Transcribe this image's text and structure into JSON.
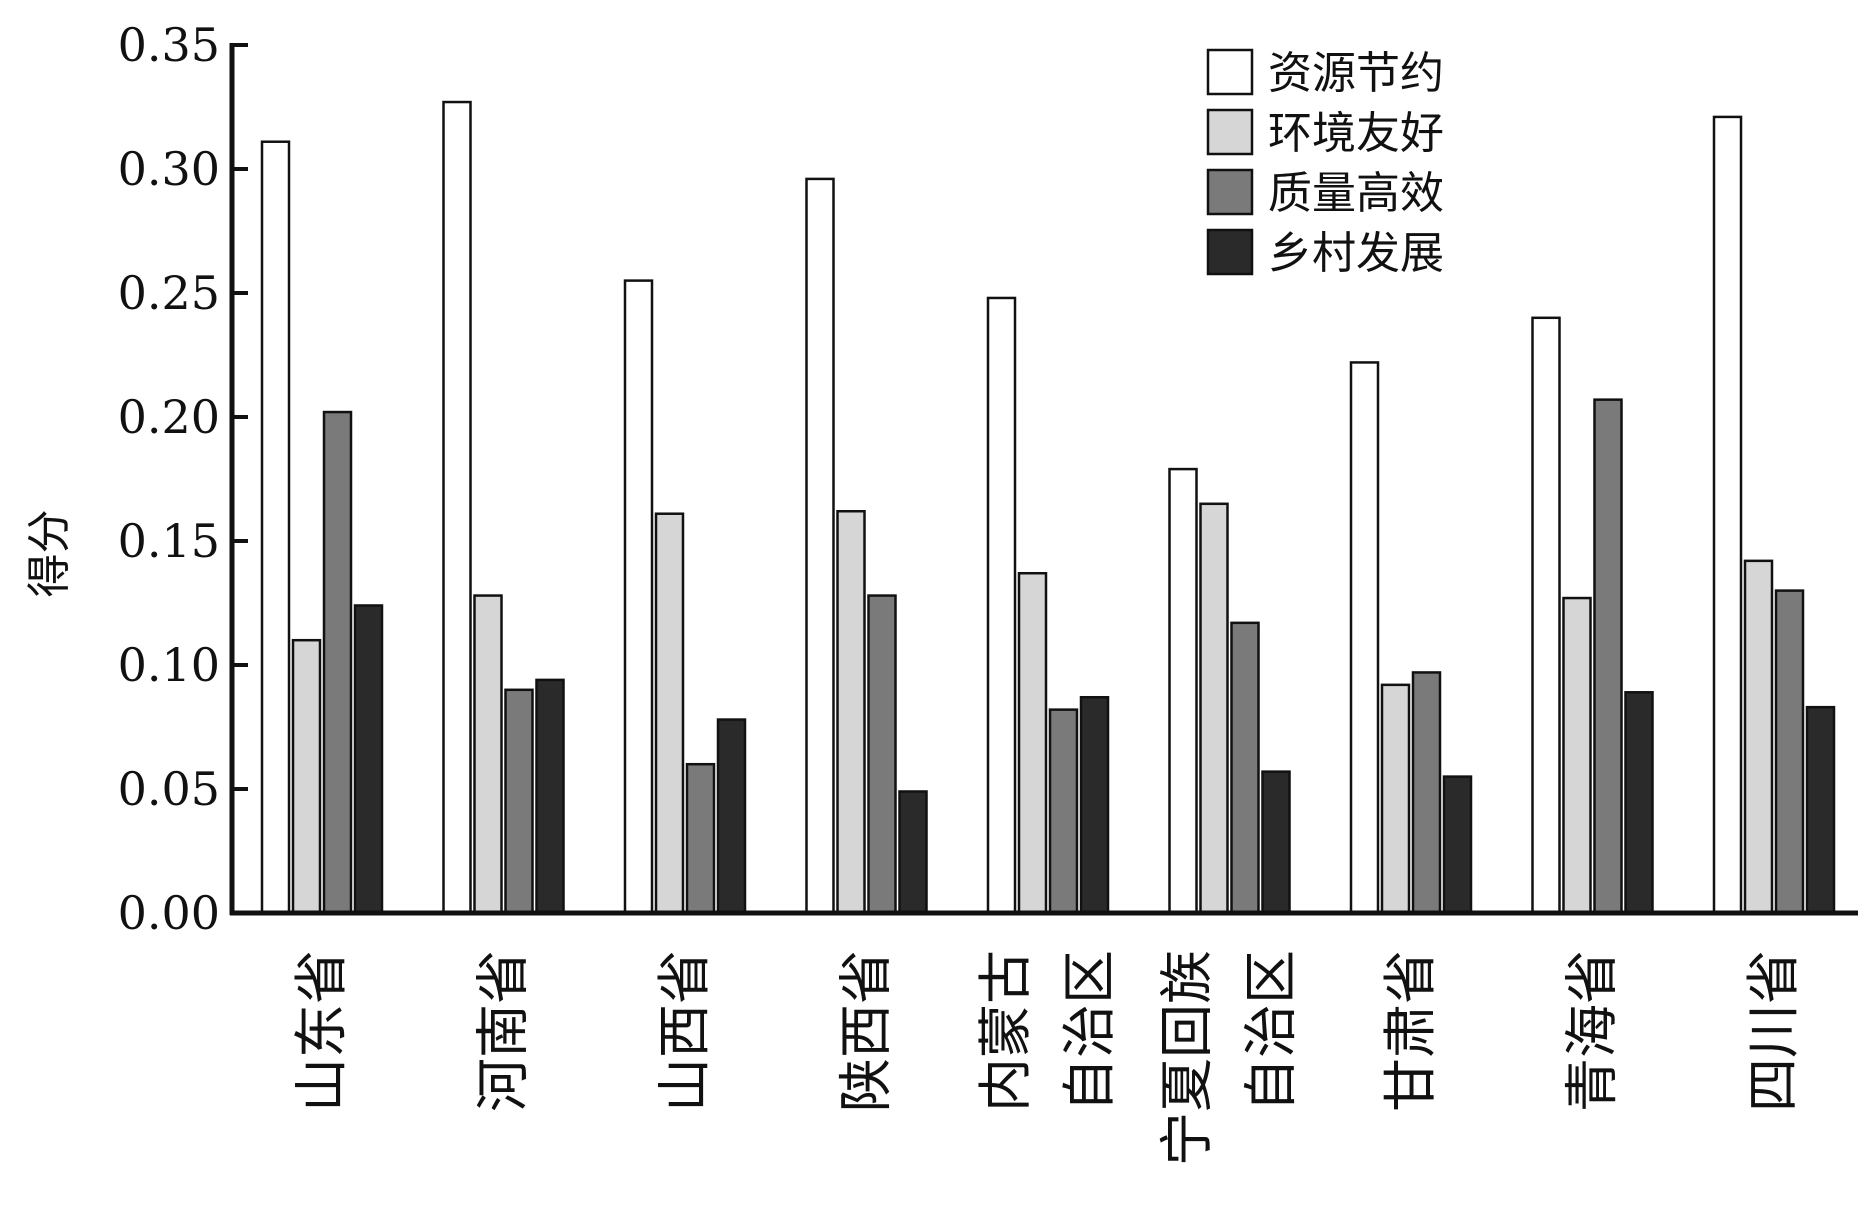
{
  "chart_data": {
    "type": "bar",
    "title": "",
    "xlabel": "",
    "ylabel": "得分",
    "ylim": [
      0,
      0.35
    ],
    "yticks": [
      "0.00",
      "0.05",
      "0.10",
      "0.15",
      "0.20",
      "0.25",
      "0.30",
      "0.35"
    ],
    "grid": false,
    "legend_position": "top-right",
    "categories": [
      [
        "山东省"
      ],
      [
        "河南省"
      ],
      [
        "山西省"
      ],
      [
        "陕西省"
      ],
      [
        "内蒙古",
        "自治区"
      ],
      [
        "宁夏回族",
        "自治区"
      ],
      [
        "甘肃省"
      ],
      [
        "青海省"
      ],
      [
        "四川省"
      ]
    ],
    "series": [
      {
        "name": "资源节约",
        "color": "#ffffff",
        "values": [
          0.311,
          0.327,
          0.255,
          0.296,
          0.248,
          0.179,
          0.222,
          0.24,
          0.321
        ]
      },
      {
        "name": "环境友好",
        "color": "#d6d6d6",
        "values": [
          0.11,
          0.128,
          0.161,
          0.162,
          0.137,
          0.165,
          0.092,
          0.127,
          0.142
        ]
      },
      {
        "name": "质量高效",
        "color": "#7a7a7a",
        "values": [
          0.202,
          0.09,
          0.06,
          0.128,
          0.082,
          0.117,
          0.097,
          0.207,
          0.13
        ]
      },
      {
        "name": "乡村发展",
        "color": "#2a2a2a",
        "values": [
          0.124,
          0.094,
          0.078,
          0.049,
          0.087,
          0.057,
          0.055,
          0.089,
          0.083
        ]
      }
    ]
  }
}
